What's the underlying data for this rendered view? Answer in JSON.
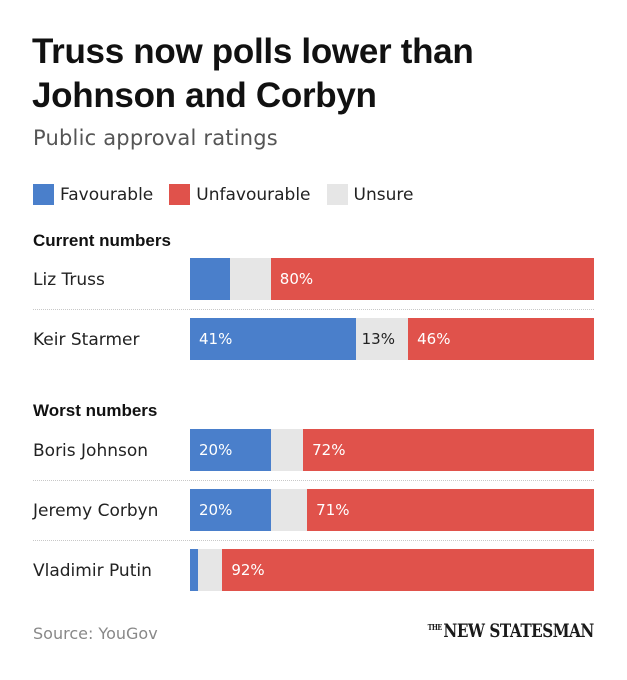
{
  "title": "Truss now polls lower than Johnson and Corbyn",
  "subtitle": "Public approval ratings",
  "source": "Source: YouGov",
  "logo": {
    "the": "THE",
    "name": "NEW STATESMAN"
  },
  "colors": {
    "favourable": "#4a7fcb",
    "unfavourable": "#e0524b",
    "unsure": "#e6e6e6"
  },
  "chart_data": {
    "type": "bar",
    "stacked": true,
    "orientation": "horizontal",
    "title": "Truss now polls lower than Johnson and Corbyn",
    "subtitle": "Public approval ratings",
    "legend": [
      {
        "key": "favourable",
        "label": "Favourable"
      },
      {
        "key": "unfavourable",
        "label": "Unfavourable"
      },
      {
        "key": "unsure",
        "label": "Unsure"
      }
    ],
    "groups": [
      {
        "label": "Current numbers",
        "rows": [
          {
            "name": "Liz Truss",
            "favourable": 10,
            "unsure": 10,
            "unfavourable": 80,
            "labels": {
              "favourable": "",
              "unsure": "",
              "unfavourable": "80%"
            }
          },
          {
            "name": "Keir Starmer",
            "favourable": 41,
            "unsure": 13,
            "unfavourable": 46,
            "labels": {
              "favourable": "41%",
              "unsure": "13%",
              "unfavourable": "46%"
            }
          }
        ]
      },
      {
        "label": "Worst numbers",
        "rows": [
          {
            "name": "Boris Johnson",
            "favourable": 20,
            "unsure": 8,
            "unfavourable": 72,
            "labels": {
              "favourable": "20%",
              "unsure": "",
              "unfavourable": "72%"
            }
          },
          {
            "name": "Jeremy Corbyn",
            "favourable": 20,
            "unsure": 9,
            "unfavourable": 71,
            "labels": {
              "favourable": "20%",
              "unsure": "",
              "unfavourable": "71%"
            }
          },
          {
            "name": "Vladimir Putin",
            "favourable": 2,
            "unsure": 6,
            "unfavourable": 92,
            "labels": {
              "favourable": "",
              "unsure": "",
              "unfavourable": "92%"
            }
          }
        ]
      }
    ],
    "xlim": [
      0,
      100
    ]
  }
}
